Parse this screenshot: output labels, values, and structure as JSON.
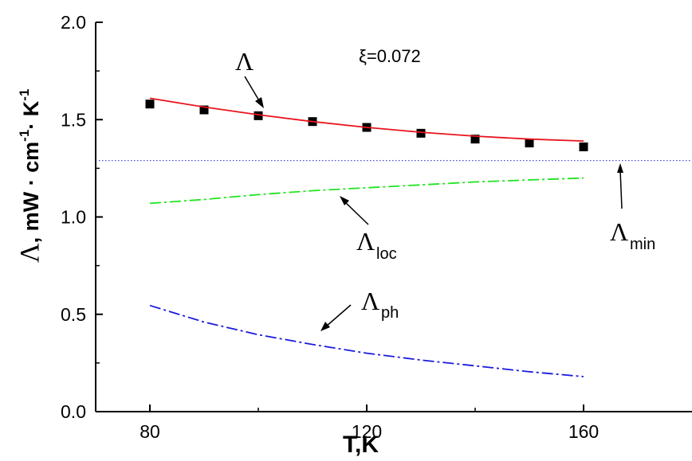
{
  "chart_data": {
    "type": "line",
    "xlabel": "T,K",
    "ylabel": {
      "symbol": "Λ",
      "sep": ", ",
      "unit_mw": "mW · cm",
      "exp_cm": "-1",
      "dot": "· K",
      "exp_k": "-1"
    },
    "xlim": [
      70,
      180
    ],
    "ylim": [
      0.0,
      2.0
    ],
    "x_ticks": [
      80,
      120,
      160
    ],
    "y_ticks": [
      0.0,
      0.5,
      1.0,
      1.5,
      2.0
    ],
    "x_tick_labels": [
      "80",
      "120",
      "160"
    ],
    "y_tick_labels": [
      "0.0",
      "0.5",
      "1.0",
      "1.5",
      "2.0"
    ],
    "parameter": "ξ=0.072",
    "series": [
      {
        "key": "measured",
        "style": "markers",
        "marker": "square",
        "color": "#000000",
        "x": [
          80,
          90,
          100,
          110,
          120,
          130,
          140,
          150,
          160
        ],
        "y": [
          1.58,
          1.55,
          1.52,
          1.49,
          1.46,
          1.43,
          1.4,
          1.38,
          1.36
        ]
      },
      {
        "key": "fit",
        "style": "solid",
        "color": "#e8141e",
        "x": [
          80,
          90,
          100,
          110,
          120,
          130,
          140,
          150,
          160
        ],
        "y": [
          1.61,
          1.565,
          1.525,
          1.49,
          1.46,
          1.435,
          1.415,
          1.4,
          1.39
        ]
      },
      {
        "key": "loc",
        "style": "dashdot",
        "color": "#1ee61e",
        "x": [
          80,
          90,
          100,
          110,
          120,
          130,
          140,
          150,
          160
        ],
        "y": [
          1.07,
          1.09,
          1.115,
          1.135,
          1.15,
          1.165,
          1.18,
          1.19,
          1.2
        ]
      },
      {
        "key": "ph",
        "style": "dashdot",
        "color": "#1a1ae0",
        "x": [
          80,
          90,
          100,
          110,
          120,
          130,
          140,
          150,
          160
        ],
        "y": [
          0.545,
          0.46,
          0.395,
          0.345,
          0.3,
          0.265,
          0.235,
          0.205,
          0.18
        ]
      }
    ],
    "reference_line": {
      "key": "min",
      "y": 1.29,
      "style": "dotted",
      "color": "#4a4ad0"
    },
    "annotations": {
      "lambda": {
        "text": "Λ",
        "sub": ""
      },
      "lambda_loc": {
        "text": "Λ",
        "sub": "loc"
      },
      "lambda_ph": {
        "text": "Λ",
        "sub": "ph"
      },
      "lambda_min": {
        "text": "Λ",
        "sub": "min"
      }
    },
    "grid": false,
    "legend": "none"
  }
}
